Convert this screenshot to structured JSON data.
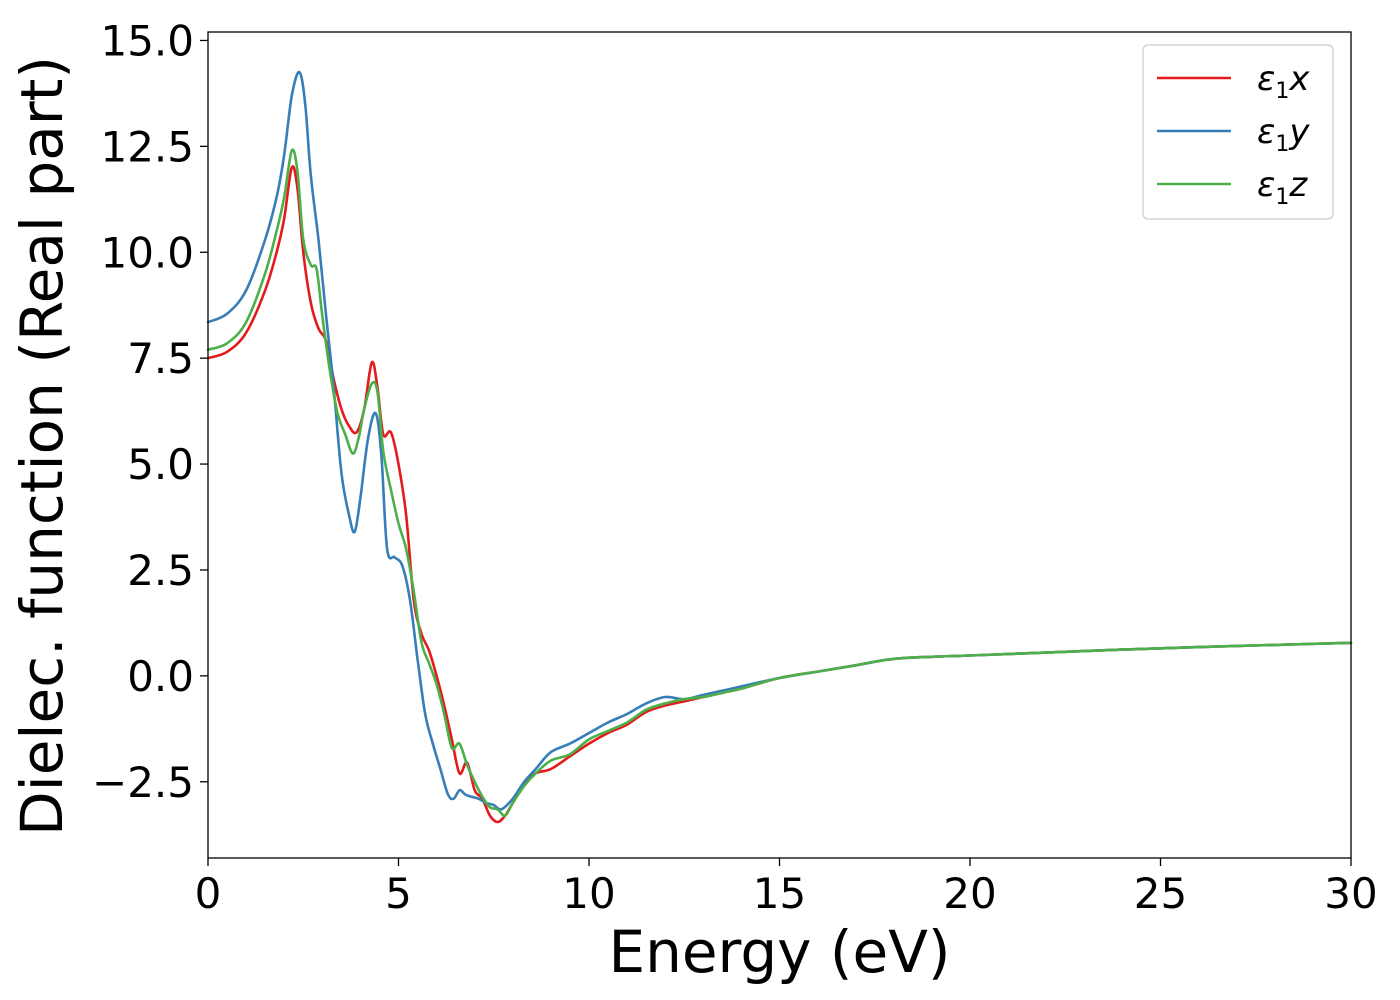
{
  "chart_data": {
    "type": "line",
    "xlabel": "Energy (eV)",
    "ylabel": "Dielec. function (Real part)",
    "xlim": [
      0,
      30
    ],
    "ylim": [
      -4.3,
      15.2
    ],
    "xticks": [
      0,
      5,
      10,
      15,
      20,
      25,
      30
    ],
    "xtick_labels": [
      "0",
      "5",
      "10",
      "15",
      "20",
      "25",
      "30"
    ],
    "yticks": [
      -2.5,
      0.0,
      2.5,
      5.0,
      7.5,
      10.0,
      12.5,
      15.0
    ],
    "ytick_labels": [
      "−2.5",
      "0.0",
      "2.5",
      "5.0",
      "7.5",
      "10.0",
      "12.5",
      "15.0"
    ],
    "grid": false,
    "legend_position": "top-right",
    "series": [
      {
        "name": "ε1x",
        "legend": {
          "sym": "ε",
          "sub": "1",
          "tail": "x"
        },
        "color": "#e41a1c",
        "x": [
          0,
          0.5,
          1.0,
          1.5,
          1.8,
          2.0,
          2.2,
          2.35,
          2.5,
          2.7,
          2.9,
          3.1,
          3.3,
          3.5,
          3.7,
          3.9,
          4.1,
          4.3,
          4.45,
          4.6,
          4.8,
          5.0,
          5.2,
          5.4,
          5.6,
          5.8,
          6.0,
          6.2,
          6.4,
          6.6,
          6.8,
          7.0,
          7.2,
          7.4,
          7.6,
          7.8,
          8.0,
          8.3,
          8.6,
          9.0,
          9.5,
          10.0,
          10.5,
          11.0,
          11.5,
          12.0,
          12.5,
          13.0,
          13.5,
          14.0,
          15.0,
          16.0,
          17.0,
          18.0,
          19.0,
          20.0,
          22.0,
          24.0,
          26.0,
          28.0,
          30.0
        ],
        "y": [
          7.5,
          7.65,
          8.1,
          9.1,
          10.0,
          10.8,
          12.0,
          11.5,
          10.0,
          8.8,
          8.2,
          7.9,
          7.0,
          6.3,
          5.9,
          5.75,
          6.3,
          7.4,
          6.8,
          5.7,
          5.75,
          5.0,
          3.8,
          1.8,
          1.0,
          0.6,
          0.0,
          -0.7,
          -1.5,
          -2.3,
          -2.05,
          -2.7,
          -2.9,
          -3.3,
          -3.45,
          -3.3,
          -3.0,
          -2.55,
          -2.3,
          -2.2,
          -1.9,
          -1.6,
          -1.35,
          -1.15,
          -0.85,
          -0.7,
          -0.6,
          -0.5,
          -0.4,
          -0.3,
          -0.05,
          0.1,
          0.25,
          0.4,
          0.45,
          0.48,
          0.55,
          0.62,
          0.68,
          0.73,
          0.78
        ]
      },
      {
        "name": "ε1y",
        "legend": {
          "sym": "ε",
          "sub": "1",
          "tail": "y"
        },
        "color": "#377eb8",
        "x": [
          0,
          0.5,
          1.0,
          1.5,
          1.8,
          2.0,
          2.2,
          2.4,
          2.55,
          2.7,
          2.9,
          3.1,
          3.3,
          3.5,
          3.7,
          3.85,
          4.0,
          4.2,
          4.4,
          4.55,
          4.7,
          4.9,
          5.1,
          5.3,
          5.5,
          5.7,
          5.9,
          6.1,
          6.3,
          6.45,
          6.6,
          6.75,
          6.9,
          7.1,
          7.3,
          7.5,
          7.7,
          8.0,
          8.3,
          8.6,
          9.0,
          9.5,
          10.0,
          10.5,
          11.0,
          11.5,
          12.0,
          12.5,
          13.0,
          13.5,
          14.0,
          15.0,
          16.0,
          17.0,
          18.0,
          19.0,
          20.0,
          22.0,
          24.0,
          26.0,
          28.0,
          30.0
        ],
        "y": [
          8.35,
          8.55,
          9.1,
          10.3,
          11.3,
          12.3,
          13.7,
          14.25,
          13.5,
          11.8,
          10.3,
          8.5,
          6.8,
          4.8,
          3.8,
          3.4,
          4.2,
          5.6,
          6.2,
          5.2,
          3.0,
          2.8,
          2.6,
          1.8,
          0.4,
          -0.9,
          -1.6,
          -2.2,
          -2.8,
          -2.9,
          -2.7,
          -2.8,
          -2.85,
          -2.9,
          -3.0,
          -3.05,
          -3.15,
          -2.9,
          -2.5,
          -2.2,
          -1.8,
          -1.6,
          -1.35,
          -1.1,
          -0.9,
          -0.65,
          -0.5,
          -0.55,
          -0.45,
          -0.35,
          -0.25,
          -0.05,
          0.1,
          0.25,
          0.4,
          0.45,
          0.48,
          0.55,
          0.62,
          0.68,
          0.73,
          0.78
        ]
      },
      {
        "name": "ε1z",
        "legend": {
          "sym": "ε",
          "sub": "1",
          "tail": "z"
        },
        "color": "#4daf4a",
        "x": [
          0,
          0.5,
          1.0,
          1.5,
          1.8,
          2.0,
          2.2,
          2.35,
          2.5,
          2.7,
          2.85,
          3.0,
          3.2,
          3.4,
          3.6,
          3.8,
          3.95,
          4.1,
          4.3,
          4.45,
          4.6,
          4.8,
          5.0,
          5.2,
          5.4,
          5.6,
          5.8,
          6.0,
          6.2,
          6.4,
          6.6,
          6.8,
          7.0,
          7.2,
          7.4,
          7.6,
          7.8,
          8.0,
          8.3,
          8.6,
          9.0,
          9.5,
          10.0,
          10.5,
          11.0,
          11.5,
          12.0,
          12.5,
          13.0,
          13.5,
          14.0,
          15.0,
          16.0,
          17.0,
          18.0,
          19.0,
          20.0,
          22.0,
          24.0,
          26.0,
          28.0,
          30.0
        ],
        "y": [
          7.7,
          7.85,
          8.35,
          9.5,
          10.5,
          11.3,
          12.4,
          11.9,
          10.3,
          9.7,
          9.6,
          8.5,
          7.2,
          6.2,
          5.7,
          5.25,
          5.6,
          6.3,
          6.9,
          6.7,
          5.3,
          4.4,
          3.6,
          3.0,
          2.0,
          0.8,
          0.3,
          -0.2,
          -0.9,
          -1.7,
          -1.6,
          -2.1,
          -2.5,
          -2.85,
          -3.1,
          -3.15,
          -3.3,
          -3.0,
          -2.6,
          -2.3,
          -2.0,
          -1.85,
          -1.5,
          -1.3,
          -1.1,
          -0.8,
          -0.65,
          -0.55,
          -0.5,
          -0.4,
          -0.3,
          -0.05,
          0.1,
          0.25,
          0.4,
          0.45,
          0.48,
          0.55,
          0.62,
          0.68,
          0.73,
          0.78
        ]
      }
    ]
  }
}
